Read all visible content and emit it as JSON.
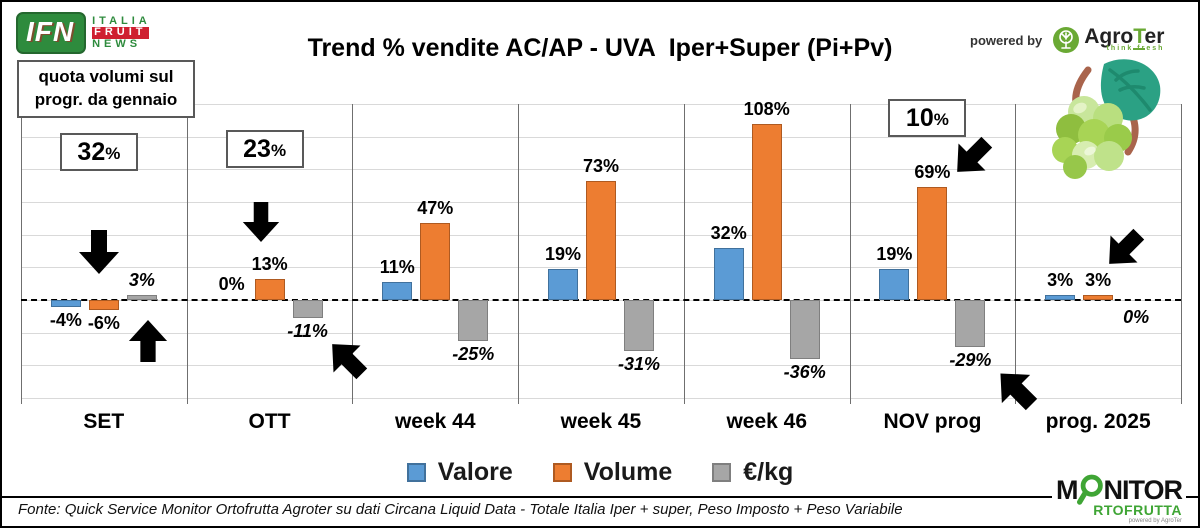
{
  "header": {
    "ifn_logo": {
      "acronym": "IFN",
      "line1": "ITALIA",
      "line2": "FRUIT",
      "line3": "NEWS"
    },
    "title": "Trend % vendite AC/AP - UVA  Iper+Super (Pi+Pv)",
    "powered_by_label": "powered by",
    "agroter_name_pre": "Agro",
    "agroter_name_t": "T",
    "agroter_name_post": "er",
    "agroter_tagline": "think fresh"
  },
  "note_box": {
    "line1": "quota volumi sul",
    "line2": "progr. da gennaio"
  },
  "chart_data": {
    "type": "bar",
    "title": "Trend % vendite AC/AP - UVA Iper+Super (Pi+Pv)",
    "categories": [
      "SET",
      "OTT",
      "week 44",
      "week 45",
      "week 46",
      "NOV prog",
      "prog. 2025"
    ],
    "series": [
      {
        "name": "Valore",
        "color": "#5B9BD5",
        "border": "#41719C",
        "values": [
          -4,
          0,
          11,
          19,
          32,
          19,
          3
        ]
      },
      {
        "name": "Volume",
        "color": "#ED7D31",
        "border": "#AE5A21",
        "values": [
          -6,
          13,
          47,
          73,
          108,
          69,
          3
        ]
      },
      {
        "name": "€/kg",
        "color": "#A6A6A6",
        "border": "#7F7F7F",
        "values": [
          3,
          -11,
          -25,
          -31,
          -36,
          -29,
          0
        ],
        "label_style": "italic"
      }
    ],
    "value_suffix": "%",
    "ylim": [
      -60,
      120
    ],
    "grid_step": 20,
    "zero_line": "dashed",
    "grid": true,
    "legend_position": "bottom",
    "quota_callouts": [
      {
        "category": "SET",
        "value": "32"
      },
      {
        "category": "OTT",
        "value": "23"
      },
      {
        "category": "NOV prog",
        "value": "10"
      }
    ],
    "legend": [
      {
        "label": "Valore",
        "color": "#5B9BD5",
        "border": "#41719C"
      },
      {
        "label": "Volume",
        "color": "#ED7D31",
        "border": "#AE5A21"
      },
      {
        "label": "€/kg",
        "color": "#A6A6A6",
        "border": "#7F7F7F"
      }
    ]
  },
  "footer": {
    "source": "Fonte: Quick Service Monitor Ortofrutta Agroter su dati Circana Liquid Data - Totale Italia Iper + super, Peso Imposto + Peso Variabile"
  },
  "monitor_logo": {
    "part1": "M",
    "part2": "NITOR",
    "line2": "RTOFRUTTA",
    "powered": "powered by AgroTer"
  }
}
